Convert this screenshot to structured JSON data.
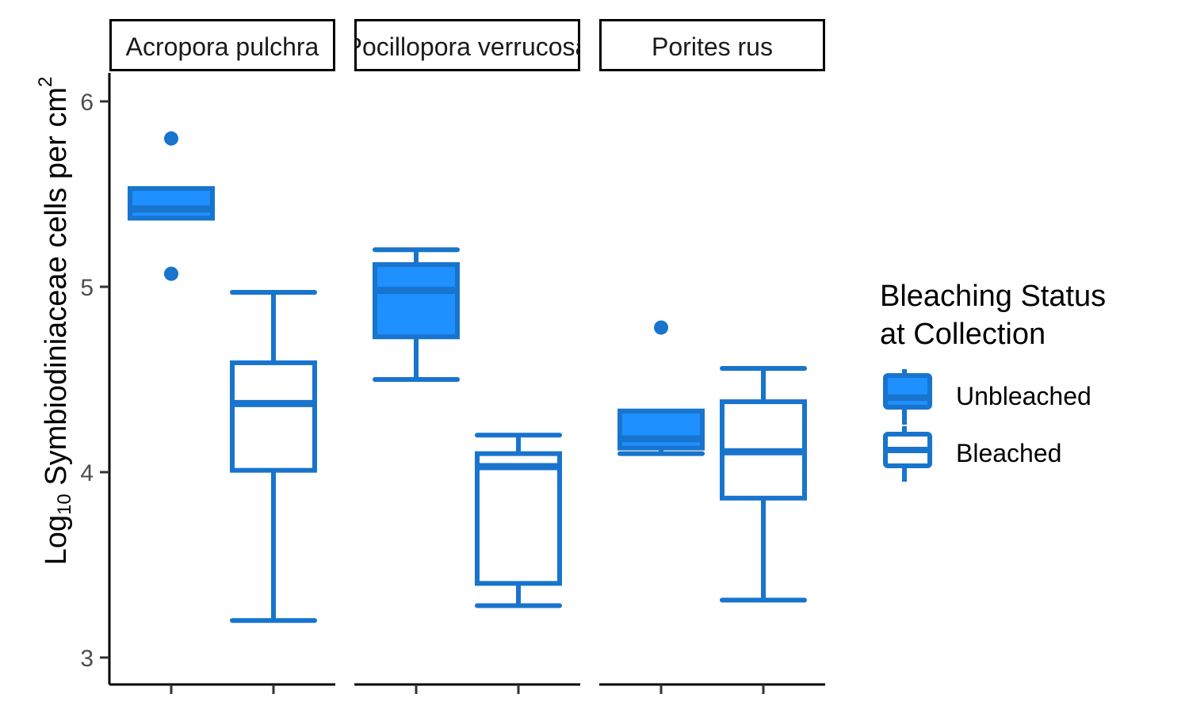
{
  "chart_data": {
    "type": "boxplot",
    "ylabel": {
      "base": "Log",
      "sub": "10",
      "text": " Symbiodiniaceae cells per cm",
      "sup": "2"
    },
    "ylim": [
      2.9,
      6.15
    ],
    "yticks": [
      3,
      4,
      5,
      6
    ],
    "legend": {
      "title": "Bleaching Status\nat Collection",
      "position": "right",
      "entries": [
        {
          "label": "Unbleached",
          "fill": "#1E90FF"
        },
        {
          "label": "Bleached",
          "fill": "#FFFFFF"
        }
      ]
    },
    "colors": {
      "line": "#1874CD",
      "unbleached_fill": "#1E90FF",
      "bleached_fill": "#FFFFFF"
    },
    "panels": [
      {
        "label": "Acropora pulchra",
        "boxes": [
          {
            "status": "Unbleached",
            "min": 5.37,
            "q1": 5.37,
            "median": 5.42,
            "q3": 5.53,
            "max": 5.53,
            "outliers": [
              5.8,
              5.07
            ]
          },
          {
            "status": "Bleached",
            "min": 3.2,
            "q1": 4.01,
            "median": 4.37,
            "q3": 4.59,
            "max": 4.97,
            "outliers": []
          }
        ]
      },
      {
        "label": "Pocillopora verrucosa",
        "boxes": [
          {
            "status": "Unbleached",
            "min": 4.5,
            "q1": 4.73,
            "median": 4.98,
            "q3": 5.12,
            "max": 5.2,
            "outliers": []
          },
          {
            "status": "Bleached",
            "min": 3.28,
            "q1": 3.4,
            "median": 4.03,
            "q3": 4.1,
            "max": 4.2,
            "outliers": []
          }
        ]
      },
      {
        "label": "Porites rus",
        "boxes": [
          {
            "status": "Unbleached",
            "min": 4.1,
            "q1": 4.13,
            "median": 4.18,
            "q3": 4.33,
            "max": 4.33,
            "outliers": [
              4.78
            ]
          },
          {
            "status": "Bleached",
            "min": 3.31,
            "q1": 3.86,
            "median": 4.11,
            "q3": 4.38,
            "max": 4.56,
            "outliers": []
          }
        ]
      }
    ]
  }
}
